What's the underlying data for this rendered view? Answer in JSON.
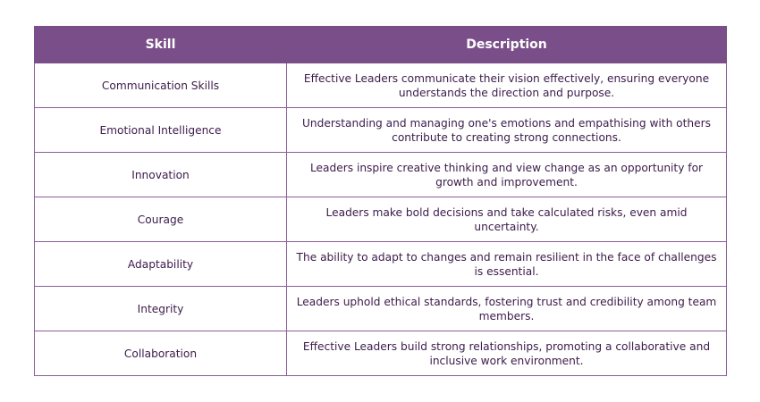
{
  "table": {
    "headers": [
      "Skill",
      "Description"
    ],
    "rows": [
      {
        "skill": "Communication Skills",
        "description": "Effective Leaders communicate their vision effectively, ensuring everyone understands the direction and purpose."
      },
      {
        "skill": "Emotional Intelligence",
        "description": "Understanding and managing one's emotions and empathising with others contribute to creating strong connections."
      },
      {
        "skill": "Innovation",
        "description": "Leaders inspire creative thinking and view change as an opportunity for growth and improvement."
      },
      {
        "skill": "Courage",
        "description": "Leaders make bold decisions and take calculated risks, even amid uncertainty."
      },
      {
        "skill": "Adaptability",
        "description": "The ability to adapt to changes and remain resilient in the face of challenges is essential."
      },
      {
        "skill": "Integrity",
        "description": "Leaders uphold ethical standards, fostering trust and credibility among team members."
      },
      {
        "skill": "Collaboration",
        "description": "Effective Leaders build strong relationships, promoting a collaborative and inclusive work environment."
      }
    ]
  },
  "colors": {
    "header_bg": "#7a4f89",
    "header_text": "#ffffff",
    "border": "#8a5f98",
    "cell_text": "#3b1b4a"
  }
}
